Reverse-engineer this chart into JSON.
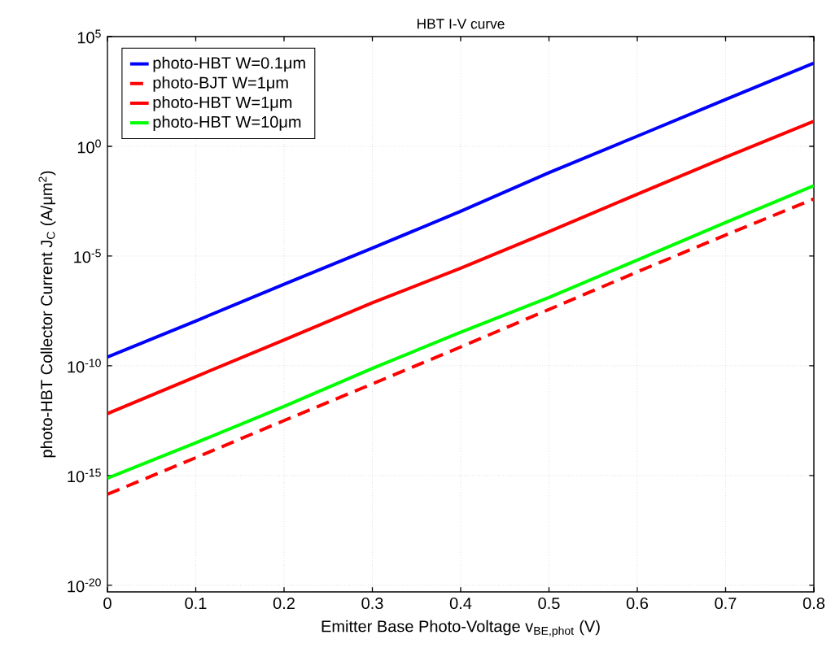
{
  "chart_data": {
    "type": "line",
    "title": "HBT I-V curve",
    "xlabel": "Emitter Base Photo-Voltage   v$_{BE,phot}$ (V)",
    "ylabel": "photo-HBT Collector Current   J$_{C}$ (A/μm$^{2}$)",
    "x": [
      0,
      0.1,
      0.2,
      0.3,
      0.4,
      0.5,
      0.6,
      0.7,
      0.8
    ],
    "series": [
      {
        "name": "photo-HBT W=0.1μm",
        "color": "#0000ff",
        "line_style": "solid",
        "values": [
          2.5e-10,
          1.1e-08,
          5.2e-07,
          2.3e-05,
          0.0011,
          0.063,
          2.9,
          135,
          6200
        ]
      },
      {
        "name": "photo-BJT W=1μm",
        "color": "#ff0000",
        "line_style": "dashed",
        "values": [
          1.4e-16,
          6.5e-15,
          3.2e-13,
          1.5e-11,
          7.2e-10,
          3.7e-08,
          1.9e-06,
          9.1e-05,
          0.004
        ]
      },
      {
        "name": "photo-HBT W=1μm",
        "color": "#ff0000",
        "line_style": "solid",
        "values": [
          6.6e-13,
          3.2e-11,
          1.5e-09,
          7.4e-08,
          2.8e-06,
          0.00013,
          0.0066,
          0.32,
          14
        ]
      },
      {
        "name": "photo-HBT W=10μm",
        "color": "#00ff00",
        "line_style": "solid",
        "values": [
          7.6e-16,
          3.1e-14,
          1.4e-12,
          7.6e-11,
          3.4e-09,
          1.3e-07,
          6.6e-06,
          0.00034,
          0.016
        ]
      }
    ],
    "xlim": [
      0,
      0.8
    ],
    "xticks": [
      0,
      0.1,
      0.2,
      0.3,
      0.4,
      0.5,
      0.6,
      0.7,
      0.8
    ],
    "ylim": [
      5e-21,
      100000
    ],
    "yticks": [
      {
        "value": 1e-20,
        "label": "10$^{-20}$"
      },
      {
        "value": 1e-15,
        "label": "10$^{-15}$"
      },
      {
        "value": 1e-10,
        "label": "10$^{-10}$"
      },
      {
        "value": 1e-05,
        "label": "10$^{-5}$"
      },
      {
        "value": 1,
        "label": "10$^{0}$"
      },
      {
        "value": 100000,
        "label": "10$^{5}$"
      }
    ],
    "log": "y",
    "grid": true,
    "legend": "top left",
    "marker": "none"
  }
}
